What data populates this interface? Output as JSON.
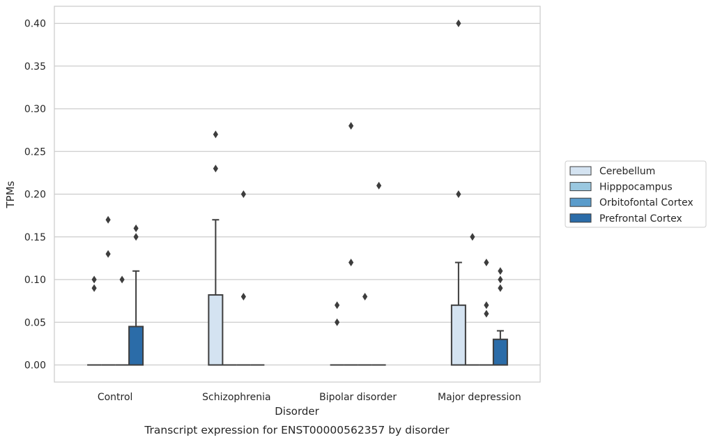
{
  "chart_data": {
    "type": "box",
    "title": "",
    "caption": "Transcript expression for ENST00000562357 by disorder",
    "xlabel": "Disorder",
    "ylabel": "TPMs",
    "ylim": [
      -0.02,
      0.42
    ],
    "yticks": [
      0.0,
      0.05,
      0.1,
      0.15,
      0.2,
      0.25,
      0.3,
      0.35,
      0.4
    ],
    "ytick_labels": [
      "0.00",
      "0.05",
      "0.10",
      "0.15",
      "0.20",
      "0.25",
      "0.30",
      "0.35",
      "0.40"
    ],
    "grid": "horizontal",
    "legend_position": "right",
    "categories": [
      "Control",
      "Schizophrenia",
      "Bipolar disorder",
      "Major depression"
    ],
    "series": [
      {
        "name": "Cerebellum",
        "color": "#d4e3f1",
        "boxes": [
          {
            "q1": 0,
            "median": 0,
            "q3": 0,
            "whisker_low": 0,
            "whisker_high": 0,
            "outliers": [
              0.09,
              0.1
            ]
          },
          {
            "q1": 0,
            "median": 0,
            "q3": 0.082,
            "whisker_low": 0,
            "whisker_high": 0.17,
            "outliers": [
              0.23,
              0.27
            ]
          },
          {
            "q1": 0,
            "median": 0,
            "q3": 0,
            "whisker_low": 0,
            "whisker_high": 0,
            "outliers": [
              0.05,
              0.07
            ]
          },
          {
            "q1": 0,
            "median": 0,
            "q3": 0.07,
            "whisker_low": 0,
            "whisker_high": 0.12,
            "outliers": [
              0.2,
              0.4
            ]
          }
        ]
      },
      {
        "name": "Hipppocampus",
        "color": "#9ac8e0",
        "boxes": [
          {
            "q1": 0,
            "median": 0,
            "q3": 0,
            "whisker_low": 0,
            "whisker_high": 0,
            "outliers": [
              0.13,
              0.17
            ]
          },
          {
            "q1": 0,
            "median": 0,
            "q3": 0,
            "whisker_low": 0,
            "whisker_high": 0,
            "outliers": []
          },
          {
            "q1": 0,
            "median": 0,
            "q3": 0,
            "whisker_low": 0,
            "whisker_high": 0,
            "outliers": [
              0.12,
              0.28
            ]
          },
          {
            "q1": 0,
            "median": 0,
            "q3": 0,
            "whisker_low": 0,
            "whisker_high": 0,
            "outliers": [
              0.15
            ]
          }
        ]
      },
      {
        "name": "Orbitofontal Cortex",
        "color": "#5a9ccb",
        "boxes": [
          {
            "q1": 0,
            "median": 0,
            "q3": 0,
            "whisker_low": 0,
            "whisker_high": 0,
            "outliers": [
              0.1
            ]
          },
          {
            "q1": 0,
            "median": 0,
            "q3": 0,
            "whisker_low": 0,
            "whisker_high": 0,
            "outliers": [
              0.08,
              0.2
            ]
          },
          {
            "q1": 0,
            "median": 0,
            "q3": 0,
            "whisker_low": 0,
            "whisker_high": 0,
            "outliers": [
              0.08
            ]
          },
          {
            "q1": 0,
            "median": 0,
            "q3": 0,
            "whisker_low": 0,
            "whisker_high": 0,
            "outliers": [
              0.06,
              0.07,
              0.12
            ]
          }
        ]
      },
      {
        "name": "Prefrontal Cortex",
        "color": "#2b6ca8",
        "boxes": [
          {
            "q1": 0,
            "median": 0,
            "q3": 0.045,
            "whisker_low": 0,
            "whisker_high": 0.11,
            "outliers": [
              0.15,
              0.16
            ]
          },
          {
            "q1": 0,
            "median": 0,
            "q3": 0,
            "whisker_low": 0,
            "whisker_high": 0,
            "outliers": []
          },
          {
            "q1": 0,
            "median": 0,
            "q3": 0,
            "whisker_low": 0,
            "whisker_high": 0,
            "outliers": [
              0.21
            ]
          },
          {
            "q1": 0,
            "median": 0,
            "q3": 0.03,
            "whisker_low": 0,
            "whisker_high": 0.04,
            "outliers": [
              0.09,
              0.1,
              0.11
            ]
          }
        ]
      }
    ]
  }
}
